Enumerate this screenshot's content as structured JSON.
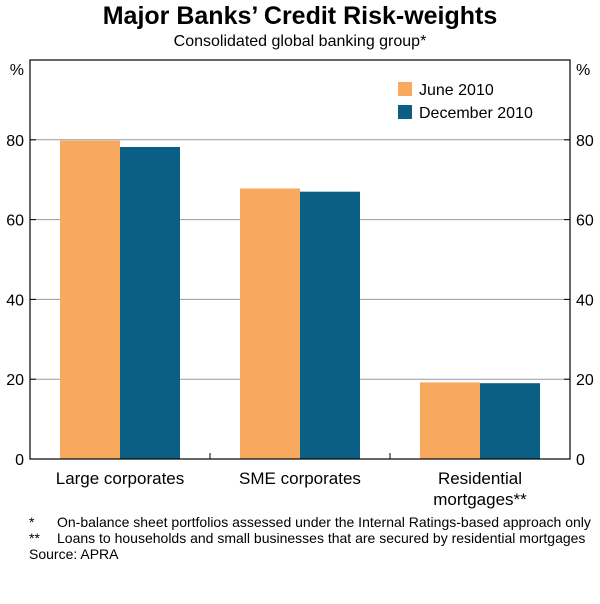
{
  "chart_data": {
    "type": "bar",
    "title": "Major Banks’ Credit Risk-weights",
    "subtitle": "Consolidated global banking group*",
    "y_unit_left": "%",
    "y_unit_right": "%",
    "ylim": [
      0,
      100
    ],
    "yticks": [
      0,
      20,
      40,
      60,
      80
    ],
    "categories": [
      [
        "Large corporates"
      ],
      [
        "SME corporates"
      ],
      [
        "Residential",
        "mortgages**"
      ]
    ],
    "series": [
      {
        "name": "June 2010",
        "color": "#f8a95e",
        "values": [
          79.8,
          67.8,
          19.2
        ]
      },
      {
        "name": "December 2010",
        "color": "#0b5f85",
        "values": [
          78.2,
          67.0,
          19.0
        ]
      }
    ],
    "legend_position": "top-right"
  },
  "notes": [
    {
      "mark": "*",
      "text": "On-balance sheet portfolios assessed under the Internal Ratings-based approach only"
    },
    {
      "mark": "**",
      "text": "Loans to households and small businesses that are secured by residential mortgages"
    }
  ],
  "source": "Source: APRA"
}
